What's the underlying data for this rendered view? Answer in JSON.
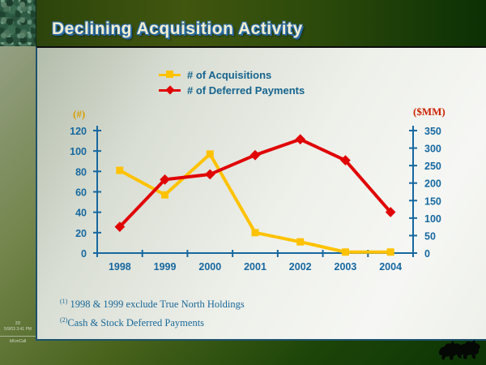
{
  "header": {
    "title": "Declining Acquisition Activity"
  },
  "chart_data": {
    "type": "line",
    "categories": [
      "1998",
      "1999",
      "2000",
      "2001",
      "2002",
      "2003",
      "2004"
    ],
    "series": [
      {
        "name": "# of Acquisitions",
        "axis": "left",
        "color": "#FFC200",
        "marker": "square",
        "values": [
          81,
          57,
          97,
          20,
          11,
          1,
          1
        ]
      },
      {
        "name": "# of Deferred Payments",
        "axis": "right",
        "color": "#E00505",
        "marker": "diamond",
        "values": [
          75,
          210,
          225,
          280,
          325,
          265,
          117
        ]
      }
    ],
    "left_axis": {
      "label": "(#)",
      "min": 0,
      "max": 120,
      "step": 20,
      "label_color": "#D99E00"
    },
    "right_axis": {
      "label": "($MM)",
      "min": 0,
      "max": 350,
      "step": 50,
      "label_color": "#CC2200"
    },
    "axis_color": "#1668A0",
    "grid": false,
    "legend_position": "top",
    "title": ""
  },
  "footnotes": [
    {
      "sup": "(1)",
      "text": "1998 & 1999 exclude True North Holdings"
    },
    {
      "sup": "(2)",
      "text": "Cash & Stock  Deferred Payments"
    }
  ],
  "stamp": {
    "line1": "3D",
    "line2": "5/9/03 3:41 PM",
    "line3": "bKonCall"
  },
  "colors": {
    "accent_blue": "#1668A0",
    "title_text": "#F2EECF",
    "title_shadow": "#2A6BA6",
    "panel_border": "#1D516E",
    "header_green": "#41560F",
    "header_green_dark": "#0B3004"
  }
}
